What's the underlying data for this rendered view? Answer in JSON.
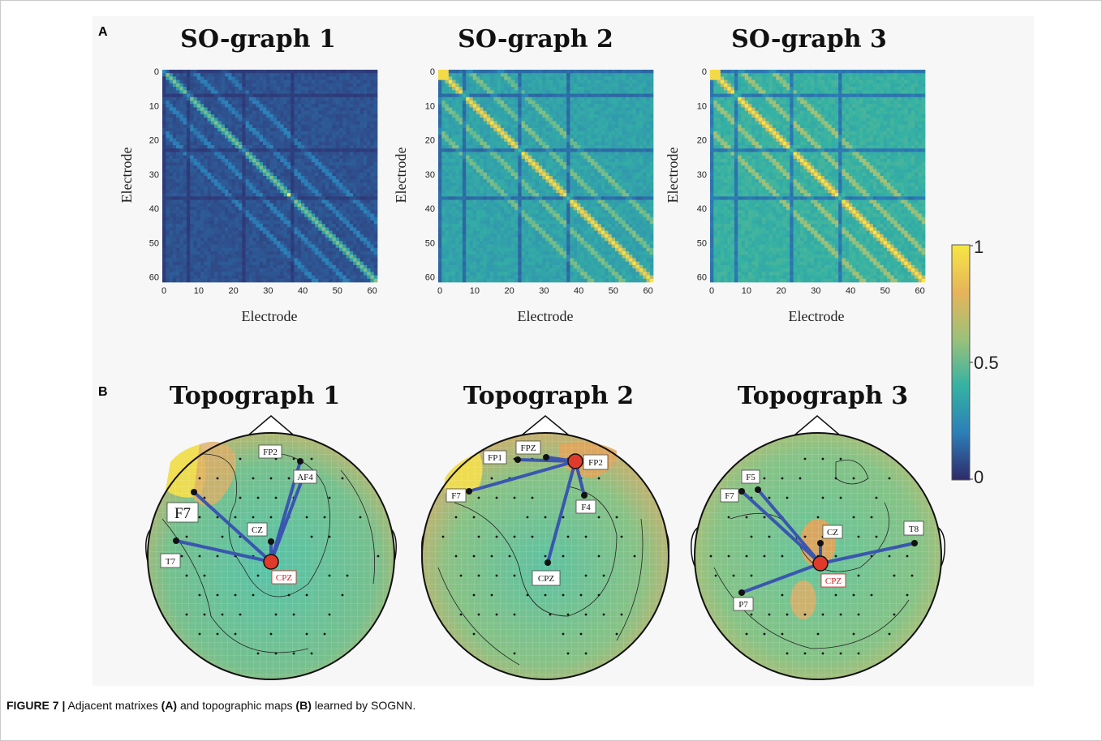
{
  "panel_a": {
    "letter": "A",
    "matrices": [
      {
        "title": "SO-graph 1",
        "xlabel": "Electrode",
        "ylabel": "Electrode"
      },
      {
        "title": "SO-graph 2",
        "xlabel": "Electrode",
        "ylabel": "Electrode"
      },
      {
        "title": "SO-graph 3",
        "xlabel": "Electrode",
        "ylabel": "Electrode"
      }
    ],
    "ticks": [
      "0",
      "10",
      "20",
      "30",
      "40",
      "50",
      "60"
    ]
  },
  "colorbar": {
    "ticks": [
      "1",
      "0.5",
      "0"
    ],
    "colormap": "viridis-like (blue to yellow)"
  },
  "panel_b": {
    "letter": "B",
    "topographs": [
      {
        "title": "Topograph 1",
        "center": "CPZ",
        "labels": [
          "FP2",
          "AF4",
          "F7",
          "CZ",
          "T7",
          "CPZ"
        ]
      },
      {
        "title": "Topograph 2",
        "center": "FP2",
        "labels": [
          "FP1",
          "FPZ",
          "FP2",
          "F7",
          "F4",
          "CPZ"
        ]
      },
      {
        "title": "Topograph 3",
        "center": "CPZ",
        "labels": [
          "F5",
          "F7",
          "CZ",
          "T8",
          "CPZ",
          "P7"
        ]
      }
    ]
  },
  "caption": {
    "figure_label": "FIGURE 7 |",
    "text_1": " Adjacent matrixes ",
    "bold_a": "(A)",
    "text_2": " and topographic maps ",
    "bold_b": "(B)",
    "text_3": " learned by SOGNN."
  },
  "colors": {
    "matrix_bg": "#2f2a6a",
    "link": "#3a56b0",
    "center_node": "#e03a2a",
    "head_fill": "#7fc38f"
  }
}
